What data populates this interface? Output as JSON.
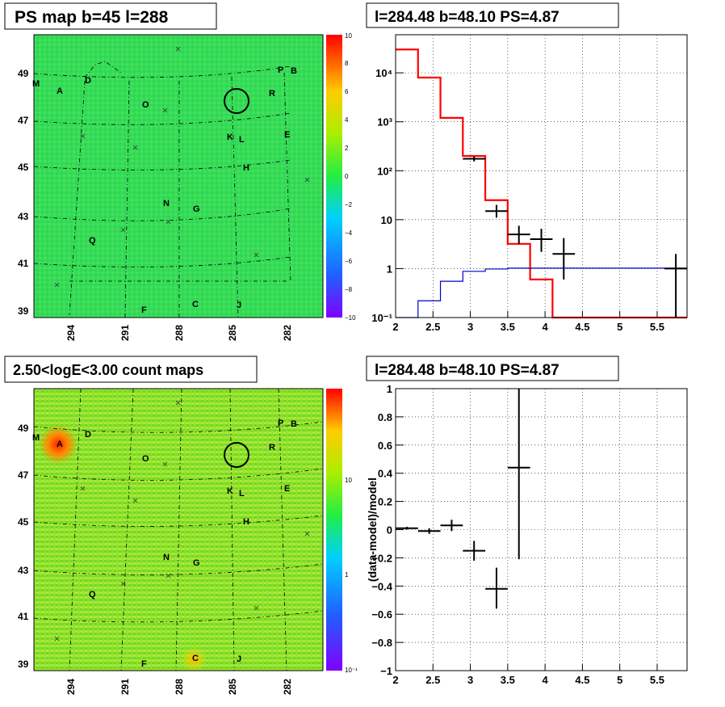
{
  "panels": {
    "ps_map": {
      "title": "PS map b=45 l=288",
      "colorbar_ticks": [
        "10",
        "8",
        "6",
        "4",
        "2",
        "0",
        "−2",
        "−4",
        "−6",
        "−8",
        "−10"
      ],
      "colors": {
        "background": "#33dd55",
        "hot": "#ff2200",
        "low": "#7a00ff"
      }
    },
    "count_map": {
      "title": "2.50<logE<3.00 count maps",
      "colorbar_ticks": [
        "10",
        "1",
        "10⁻¹"
      ],
      "colors": {
        "background": "#7fe020",
        "hot": "#ff2200"
      }
    },
    "spectrum": {
      "title": "l=284.48 b=48.10 PS=4.87"
    },
    "residual": {
      "title": "l=284.48 b=48.10 PS=4.87"
    }
  },
  "map_axes": {
    "x_ticks": [
      "294",
      "291",
      "288",
      "285",
      "282"
    ],
    "y_ticks": [
      "49",
      "47",
      "45",
      "43",
      "41",
      "39"
    ]
  },
  "map_markers": [
    {
      "label": "A"
    },
    {
      "label": "B"
    },
    {
      "label": "C"
    },
    {
      "label": "D"
    },
    {
      "label": "E"
    },
    {
      "label": "F"
    },
    {
      "label": "G"
    },
    {
      "label": "H"
    },
    {
      "label": "J"
    },
    {
      "label": "K"
    },
    {
      "label": "L"
    },
    {
      "label": "M"
    },
    {
      "label": "N"
    },
    {
      "label": "O"
    },
    {
      "label": "P"
    },
    {
      "label": "Q"
    },
    {
      "label": "R"
    }
  ],
  "chart_data": [
    {
      "type": "line",
      "panel": "spectrum",
      "title": "l=284.48 b=48.10 PS=4.87",
      "xlabel": "",
      "ylabel": "",
      "xlim": [
        2,
        5.9
      ],
      "ylim": [
        0.1,
        60000
      ],
      "yscale": "log",
      "x_ticks": [
        "2",
        "2.5",
        "3",
        "3.5",
        "4",
        "4.5",
        "5",
        "5.5"
      ],
      "y_ticks": [
        "10⁻¹",
        "1",
        "10",
        "10²",
        "10³",
        "10⁴"
      ],
      "grid": true,
      "series": [
        {
          "color": "#ff0000",
          "kind": "step",
          "edges": [
            2.0,
            2.3,
            2.6,
            2.9,
            3.2,
            3.5,
            3.8,
            4.1,
            4.4,
            5.9
          ],
          "values": [
            30000,
            8000,
            1200,
            200,
            25,
            3.2,
            0.6,
            0.1,
            0.1
          ]
        },
        {
          "color": "#0000cc",
          "kind": "step",
          "edges": [
            2.0,
            2.3,
            2.6,
            2.9,
            3.2,
            3.5,
            5.9
          ],
          "values": [
            0.1,
            0.22,
            0.55,
            0.88,
            0.98,
            1.02
          ]
        },
        {
          "color": "#000000",
          "kind": "errorbar",
          "points": [
            {
              "x": 3.05,
              "xerr": 0.15,
              "y": 175,
              "ylo": 155,
              "yhi": 195
            },
            {
              "x": 3.35,
              "xerr": 0.15,
              "y": 15,
              "ylo": 11,
              "yhi": 20
            },
            {
              "x": 3.65,
              "xerr": 0.15,
              "y": 5,
              "ylo": 3.2,
              "yhi": 7.5
            },
            {
              "x": 3.95,
              "xerr": 0.15,
              "y": 4,
              "ylo": 2.2,
              "yhi": 6.5
            },
            {
              "x": 4.25,
              "xerr": 0.15,
              "y": 2,
              "ylo": 0.6,
              "yhi": 4.2
            },
            {
              "x": 5.75,
              "xerr": 0.15,
              "y": 1,
              "ylo": 0.1,
              "yhi": 2.0
            }
          ]
        }
      ]
    },
    {
      "type": "scatter",
      "panel": "residual",
      "title": "l=284.48 b=48.10 PS=4.87",
      "xlabel": "",
      "ylabel": "(data-model)/model",
      "xlim": [
        2,
        5.9
      ],
      "ylim": [
        -1,
        1
      ],
      "x_ticks": [
        "2",
        "2.5",
        "3",
        "3.5",
        "4",
        "4.5",
        "5",
        "5.5"
      ],
      "y_ticks": [
        "1",
        "0.8",
        "0.6",
        "0.4",
        "0.2",
        "0",
        "−0.2",
        "−0.4",
        "−0.6",
        "−0.8",
        "−1"
      ],
      "grid": true,
      "series": [
        {
          "color": "#000000",
          "kind": "errorbar",
          "points": [
            {
              "x": 2.15,
              "xerr": 0.15,
              "y": 0.01,
              "ylo": 0.0,
              "yhi": 0.02
            },
            {
              "x": 2.45,
              "xerr": 0.15,
              "y": -0.01,
              "ylo": -0.03,
              "yhi": 0.01
            },
            {
              "x": 2.75,
              "xerr": 0.15,
              "y": 0.03,
              "ylo": -0.01,
              "yhi": 0.07
            },
            {
              "x": 3.05,
              "xerr": 0.15,
              "y": -0.15,
              "ylo": -0.22,
              "yhi": -0.08
            },
            {
              "x": 3.35,
              "xerr": 0.15,
              "y": -0.42,
              "ylo": -0.56,
              "yhi": -0.27
            },
            {
              "x": 3.65,
              "xerr": 0.15,
              "y": 0.44,
              "ylo": -0.21,
              "yhi": 1.0
            }
          ]
        }
      ]
    }
  ]
}
